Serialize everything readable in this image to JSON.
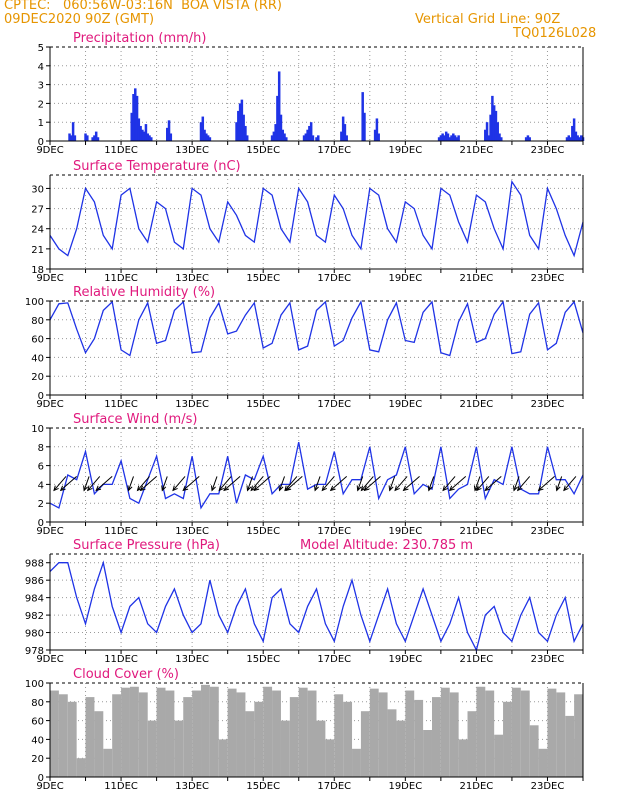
{
  "header": {
    "source": "CPTEC:",
    "location": "060:56W-03:16N  BOA VISTA (RR)",
    "run": "09DEC2020 90Z (GMT)",
    "grid_note": "Vertical Grid Line: 90Z",
    "code": "TQ0126L028"
  },
  "x_tick_labels": [
    "9DEC",
    "11DEC",
    "13DEC",
    "15DEC",
    "17DEC",
    "19DEC",
    "21DEC",
    "23DEC"
  ],
  "colors": {
    "header": "#e69500",
    "title": "#e0197d",
    "line": "#1f33e6",
    "bar": "#1f33e6",
    "cloud": "#a9a9a9",
    "wind_arrow": "#000000"
  },
  "chart_data": [
    {
      "type": "bar",
      "title": "Precipitation (mm/h)",
      "xlabel": "",
      "ylabel": "",
      "ylim": [
        0,
        5
      ],
      "yticks": [
        0,
        1,
        2,
        3,
        4,
        5
      ],
      "x_unit": "days since 09DEC2020",
      "x": [
        0.55,
        0.6,
        0.65,
        0.7,
        1.0,
        1.05,
        1.2,
        1.25,
        1.3,
        1.35,
        2.3,
        2.35,
        2.4,
        2.45,
        2.5,
        2.55,
        2.6,
        2.65,
        2.7,
        2.75,
        2.8,
        2.85,
        3.3,
        3.35,
        3.4,
        4.25,
        4.3,
        4.35,
        4.4,
        4.45,
        4.5,
        5.25,
        5.3,
        5.35,
        5.4,
        5.45,
        5.5,
        5.55,
        6.25,
        6.3,
        6.35,
        6.4,
        6.45,
        6.5,
        6.55,
        6.6,
        6.65,
        7.15,
        7.2,
        7.25,
        7.3,
        7.35,
        7.4,
        7.5,
        7.55,
        8.2,
        8.25,
        8.3,
        8.35,
        8.8,
        8.85,
        9.15,
        9.2,
        9.25,
        10.95,
        11.0,
        11.05,
        11.1,
        11.15,
        11.2,
        11.25,
        11.3,
        11.35,
        11.4,
        11.45,
        11.5,
        12.25,
        12.3,
        12.35,
        12.4,
        12.45,
        12.5,
        12.55,
        12.6,
        12.65,
        12.7,
        13.4,
        13.45,
        13.5,
        14.55,
        14.6,
        14.65,
        14.7,
        14.75,
        14.8,
        14.85,
        14.9,
        14.95,
        15.0
      ],
      "values": [
        0.4,
        0.3,
        1.0,
        0.3,
        0.4,
        0.3,
        0.2,
        0.3,
        0.5,
        0.2,
        1.5,
        2.5,
        2.8,
        2.4,
        1.2,
        0.8,
        0.6,
        0.5,
        0.9,
        0.4,
        0.3,
        0.2,
        0.7,
        1.1,
        0.4,
        1.0,
        1.3,
        0.6,
        0.4,
        0.3,
        0.2,
        1.0,
        1.6,
        2.0,
        2.2,
        1.4,
        0.8,
        0.3,
        0.3,
        0.5,
        0.9,
        2.4,
        3.7,
        1.4,
        0.6,
        0.4,
        0.2,
        0.3,
        0.4,
        0.6,
        0.8,
        1.0,
        0.3,
        0.2,
        0.3,
        0.5,
        1.3,
        0.9,
        0.3,
        2.6,
        1.5,
        0.6,
        1.2,
        0.4,
        0.2,
        0.3,
        0.4,
        0.3,
        0.5,
        0.4,
        0.2,
        0.3,
        0.4,
        0.3,
        0.2,
        0.3,
        0.6,
        1.0,
        0.3,
        1.4,
        2.4,
        1.9,
        1.6,
        1.0,
        0.4,
        0.2,
        0.2,
        0.3,
        0.2,
        0.2,
        0.3,
        0.2,
        0.8,
        1.2,
        0.5,
        0.3,
        0.2,
        0.3,
        0.2
      ]
    },
    {
      "type": "line",
      "title": "Surface Temperature (nC)",
      "xlabel": "",
      "ylabel": "",
      "ylim": [
        18,
        32
      ],
      "yticks": [
        18,
        21,
        24,
        27,
        30
      ],
      "x": [
        0,
        0.25,
        0.5,
        0.75,
        1,
        1.25,
        1.5,
        1.75,
        2,
        2.25,
        2.5,
        2.75,
        3,
        3.25,
        3.5,
        3.75,
        4,
        4.25,
        4.5,
        4.75,
        5,
        5.25,
        5.5,
        5.75,
        6,
        6.25,
        6.5,
        6.75,
        7,
        7.25,
        7.5,
        7.75,
        8,
        8.25,
        8.5,
        8.75,
        9,
        9.25,
        9.5,
        9.75,
        10,
        10.25,
        10.5,
        10.75,
        11,
        11.25,
        11.5,
        11.75,
        12,
        12.25,
        12.5,
        12.75,
        13,
        13.25,
        13.5,
        13.75,
        14,
        14.25,
        14.5,
        14.75,
        15
      ],
      "values": [
        23,
        21,
        20,
        24,
        30,
        28,
        23,
        21,
        29,
        30,
        24,
        22,
        28,
        27,
        22,
        21,
        30,
        29,
        24,
        22,
        28,
        26,
        23,
        22,
        30,
        29,
        24,
        22,
        30,
        28,
        23,
        22,
        29,
        27,
        23,
        21,
        30,
        29,
        24,
        22,
        28,
        27,
        23,
        21,
        30,
        29,
        25,
        22,
        29,
        28,
        24,
        21,
        31,
        29,
        23,
        21,
        30,
        27,
        23,
        20,
        25
      ]
    },
    {
      "type": "line",
      "title": "Relative Humidity (%)",
      "xlabel": "",
      "ylabel": "",
      "ylim": [
        0,
        100
      ],
      "yticks": [
        0,
        20,
        40,
        60,
        80,
        100
      ],
      "x": [
        0,
        0.25,
        0.5,
        0.75,
        1,
        1.25,
        1.5,
        1.75,
        2,
        2.25,
        2.5,
        2.75,
        3,
        3.25,
        3.5,
        3.75,
        4,
        4.25,
        4.5,
        4.75,
        5,
        5.25,
        5.5,
        5.75,
        6,
        6.25,
        6.5,
        6.75,
        7,
        7.25,
        7.5,
        7.75,
        8,
        8.25,
        8.5,
        8.75,
        9,
        9.25,
        9.5,
        9.75,
        10,
        10.25,
        10.5,
        10.75,
        11,
        11.25,
        11.5,
        11.75,
        12,
        12.25,
        12.5,
        12.75,
        13,
        13.25,
        13.5,
        13.75,
        14,
        14.25,
        14.5,
        14.75,
        15
      ],
      "values": [
        80,
        97,
        98,
        70,
        45,
        60,
        90,
        99,
        48,
        42,
        80,
        98,
        55,
        58,
        90,
        99,
        45,
        46,
        82,
        98,
        65,
        68,
        85,
        98,
        50,
        55,
        85,
        98,
        48,
        52,
        90,
        99,
        52,
        58,
        82,
        99,
        48,
        46,
        80,
        98,
        58,
        56,
        88,
        99,
        45,
        42,
        78,
        97,
        56,
        60,
        86,
        99,
        44,
        46,
        86,
        98,
        48,
        55,
        88,
        99,
        66
      ]
    },
    {
      "type": "line",
      "title": "Surface Wind (m/s)",
      "xlabel": "",
      "ylabel": "",
      "ylim": [
        0,
        10
      ],
      "yticks": [
        0,
        2,
        4,
        6,
        8,
        10
      ],
      "x": [
        0,
        0.25,
        0.5,
        0.75,
        1,
        1.25,
        1.5,
        1.75,
        2,
        2.25,
        2.5,
        2.75,
        3,
        3.25,
        3.5,
        3.75,
        4,
        4.25,
        4.5,
        4.75,
        5,
        5.25,
        5.5,
        5.75,
        6,
        6.25,
        6.5,
        6.75,
        7,
        7.25,
        7.5,
        7.75,
        8,
        8.25,
        8.5,
        8.75,
        9,
        9.25,
        9.5,
        9.75,
        10,
        10.25,
        10.5,
        10.75,
        11,
        11.25,
        11.5,
        11.75,
        12,
        12.25,
        12.5,
        12.75,
        13,
        13.25,
        13.5,
        13.75,
        14,
        14.25,
        14.5,
        14.75,
        15
      ],
      "values": [
        2.0,
        1.5,
        5.0,
        4.5,
        7.5,
        3.0,
        4.0,
        4.0,
        6.5,
        2.5,
        2.0,
        4.5,
        7.0,
        2.5,
        3.0,
        2.5,
        7.0,
        1.5,
        3.0,
        3.0,
        7.0,
        2.0,
        5.0,
        4.5,
        7.0,
        3.0,
        4.0,
        4.0,
        8.5,
        3.5,
        4.0,
        4.0,
        7.5,
        3.0,
        4.5,
        4.5,
        8.0,
        2.5,
        4.5,
        5.0,
        8.0,
        3.0,
        4.0,
        3.5,
        8.0,
        2.5,
        3.5,
        4.0,
        8.0,
        2.5,
        4.5,
        4.0,
        8.0,
        3.5,
        3.0,
        3.0,
        8.0,
        4.5,
        4.5,
        3.0,
        5.0
      ],
      "arrows_x": [
        0.45,
        0.75,
        1.1,
        1.4,
        1.75,
        2.35,
        2.8,
        3.0,
        3.3,
        3.8,
        4.2,
        4.7,
        5.1,
        5.35,
        5.7,
        6.0,
        6.2,
        6.6,
        6.95,
        7.1,
        7.6,
        8.0,
        8.35,
        8.8,
        9.1,
        9.3,
        9.7,
        10.05,
        10.4,
        10.8,
        11.4,
        11.7,
        12.1,
        12.35,
        12.7,
        13.2,
        13.5,
        14.2,
        14.4,
        14.8
      ]
    },
    {
      "type": "line",
      "title": "Surface Pressure (hPa)",
      "subtitle": "Model Altitude: 230.785 m",
      "xlabel": "",
      "ylabel": "",
      "ylim": [
        978,
        989
      ],
      "yticks": [
        978,
        980,
        982,
        984,
        986,
        988
      ],
      "x": [
        0,
        0.25,
        0.5,
        0.75,
        1,
        1.25,
        1.5,
        1.75,
        2,
        2.25,
        2.5,
        2.75,
        3,
        3.25,
        3.5,
        3.75,
        4,
        4.25,
        4.5,
        4.75,
        5,
        5.25,
        5.5,
        5.75,
        6,
        6.25,
        6.5,
        6.75,
        7,
        7.25,
        7.5,
        7.75,
        8,
        8.25,
        8.5,
        8.75,
        9,
        9.25,
        9.5,
        9.75,
        10,
        10.25,
        10.5,
        10.75,
        11,
        11.25,
        11.5,
        11.75,
        12,
        12.25,
        12.5,
        12.75,
        13,
        13.25,
        13.5,
        13.75,
        14,
        14.25,
        14.5,
        14.75,
        15
      ],
      "values": [
        987,
        988,
        988,
        984,
        981,
        985,
        988,
        983,
        980,
        983,
        984,
        981,
        980,
        983,
        985,
        982,
        980,
        981,
        986,
        982,
        980,
        983,
        985,
        981,
        979,
        984,
        985,
        981,
        980,
        983,
        985,
        981,
        979,
        983,
        986,
        982,
        979,
        982,
        985,
        981,
        979,
        982,
        985,
        982,
        979,
        981,
        984,
        980,
        978,
        982,
        983,
        980,
        979,
        982,
        984,
        980,
        979,
        982,
        984,
        979,
        981
      ]
    },
    {
      "type": "bar",
      "title": "Cloud Cover (%)",
      "xlabel": "",
      "ylabel": "",
      "ylim": [
        0,
        100
      ],
      "yticks": [
        0,
        20,
        40,
        60,
        80,
        100
      ],
      "x": [
        0,
        0.25,
        0.5,
        0.75,
        1,
        1.25,
        1.5,
        1.75,
        2,
        2.25,
        2.5,
        2.75,
        3,
        3.25,
        3.5,
        3.75,
        4,
        4.25,
        4.5,
        4.75,
        5,
        5.25,
        5.5,
        5.75,
        6,
        6.25,
        6.5,
        6.75,
        7,
        7.25,
        7.5,
        7.75,
        8,
        8.25,
        8.5,
        8.75,
        9,
        9.25,
        9.5,
        9.75,
        10,
        10.25,
        10.5,
        10.75,
        11,
        11.25,
        11.5,
        11.75,
        12,
        12.25,
        12.5,
        12.75,
        13,
        13.25,
        13.5,
        13.75,
        14,
        14.25,
        14.5,
        14.75,
        15
      ],
      "values": [
        92,
        88,
        80,
        20,
        85,
        70,
        30,
        88,
        95,
        96,
        90,
        60,
        95,
        92,
        60,
        85,
        92,
        98,
        96,
        40,
        94,
        90,
        70,
        80,
        96,
        92,
        60,
        85,
        95,
        92,
        60,
        40,
        88,
        80,
        30,
        70,
        94,
        90,
        72,
        60,
        92,
        82,
        50,
        85,
        95,
        90,
        40,
        70,
        96,
        92,
        45,
        80,
        95,
        92,
        55,
        30,
        94,
        90,
        65,
        40,
        88
      ]
    }
  ]
}
